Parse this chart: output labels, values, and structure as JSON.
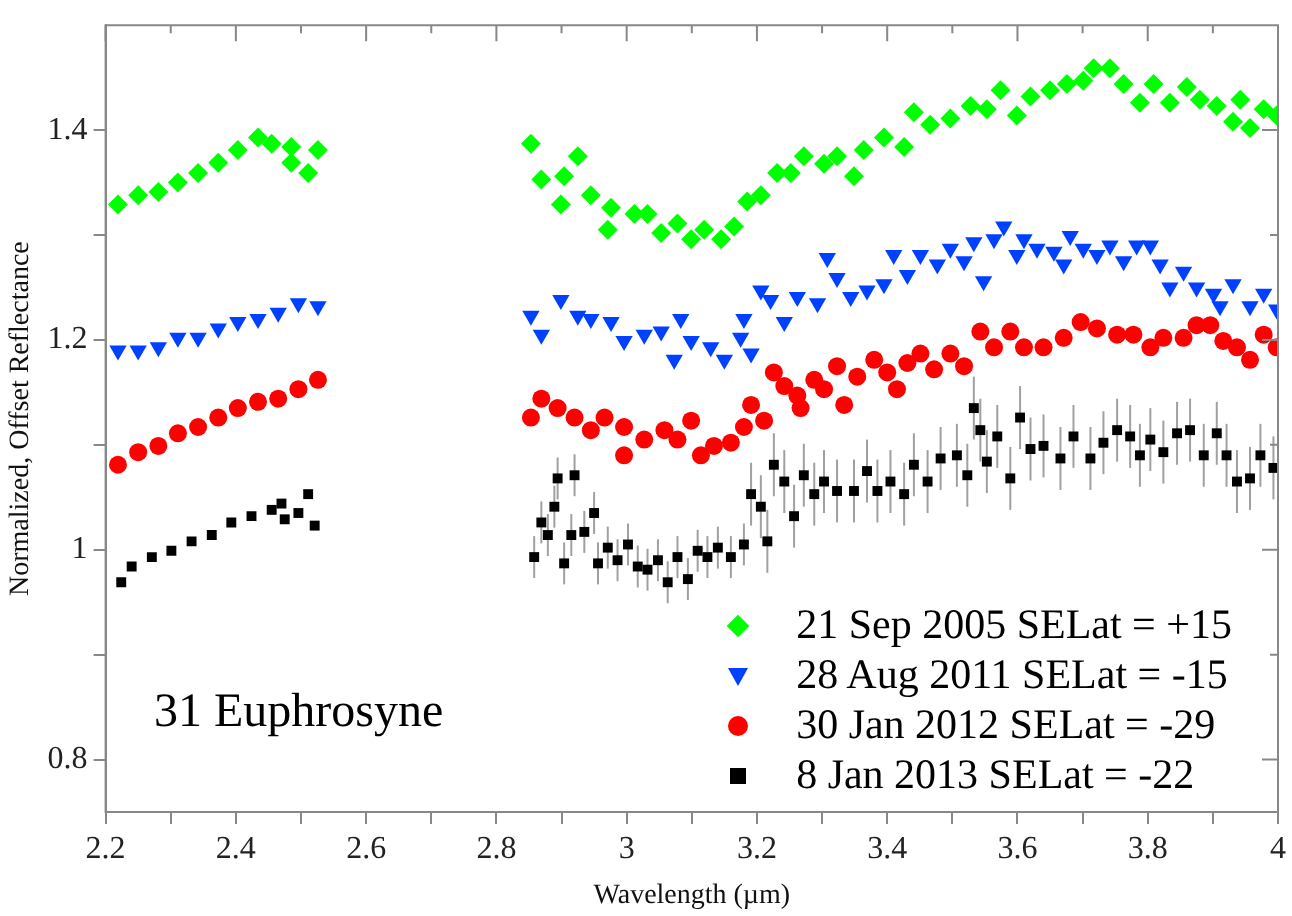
{
  "chart_data": {
    "type": "scatter",
    "xlabel": "Wavelength (µm)",
    "ylabel": "Normalized, Offset Reflectance",
    "xlim": [
      2.2,
      4
    ],
    "ylim": [
      0.75,
      1.5
    ],
    "xticks": [
      2.2,
      {
        "value": 2.3,
        "label": null
      },
      2.4,
      {
        "value": 2.5,
        "label": null
      },
      2.6,
      {
        "value": 2.7,
        "label": null
      },
      2.8,
      {
        "value": 2.9,
        "label": null
      },
      3,
      {
        "value": 3.1,
        "label": null
      },
      3.2,
      {
        "value": 3.3,
        "label": null
      },
      3.4,
      {
        "value": 3.5,
        "label": null
      },
      3.6,
      {
        "value": 3.7,
        "label": null
      },
      3.8,
      {
        "value": 3.9,
        "label": null
      },
      4
    ],
    "yticks": [
      0.8,
      {
        "value": 0.9,
        "label": null
      },
      1,
      {
        "value": 1.1,
        "label": null
      },
      1.2,
      {
        "value": 1.3,
        "label": null
      },
      1.4
    ],
    "grid": false,
    "legend": "bottom right",
    "annotations": [
      "31 Euphrosyne"
    ],
    "series": [
      {
        "name": "21 Sep 2005 SELat = +15",
        "color": "#00ff00",
        "marker": "diamond",
        "x": [
          2.219,
          2.25,
          2.281,
          2.311,
          2.342,
          2.373,
          2.403,
          2.434,
          2.455,
          2.485,
          2.485,
          2.511,
          2.526,
          2.853,
          2.869,
          2.904,
          2.925,
          2.899,
          2.945,
          2.976,
          2.971,
          3.012,
          3.032,
          3.053,
          3.078,
          3.099,
          3.119,
          3.145,
          3.165,
          3.185,
          3.206,
          3.231,
          3.252,
          3.272,
          3.303,
          3.323,
          3.349,
          3.364,
          3.395,
          3.426,
          3.441,
          3.466,
          3.497,
          3.528,
          3.553,
          3.574,
          3.599,
          3.62,
          3.65,
          3.676,
          3.701,
          3.717,
          3.742,
          3.763,
          3.788,
          3.809,
          3.834,
          3.86,
          3.88,
          3.906,
          3.931,
          3.942,
          3.957,
          3.978,
          3.998
        ],
        "values": [
          1.329,
          1.338,
          1.341,
          1.35,
          1.359,
          1.369,
          1.381,
          1.393,
          1.387,
          1.384,
          1.369,
          1.359,
          1.381,
          1.387,
          1.353,
          1.356,
          1.375,
          1.329,
          1.338,
          1.326,
          1.305,
          1.32,
          1.32,
          1.302,
          1.311,
          1.296,
          1.305,
          1.296,
          1.308,
          1.332,
          1.338,
          1.359,
          1.359,
          1.375,
          1.368,
          1.375,
          1.356,
          1.381,
          1.393,
          1.384,
          1.417,
          1.405,
          1.411,
          1.423,
          1.42,
          1.438,
          1.414,
          1.432,
          1.438,
          1.444,
          1.447,
          1.459,
          1.459,
          1.444,
          1.426,
          1.444,
          1.426,
          1.441,
          1.429,
          1.423,
          1.408,
          1.429,
          1.402,
          1.42,
          1.414
        ]
      },
      {
        "name": "28 Aug 2011 SELat = -15",
        "color": "#0040ff",
        "marker": "triangle",
        "x": [
          2.219,
          2.25,
          2.281,
          2.311,
          2.342,
          2.373,
          2.403,
          2.434,
          2.465,
          2.496,
          2.526,
          2.853,
          2.869,
          2.899,
          2.925,
          2.945,
          2.976,
          2.996,
          3.027,
          3.053,
          3.073,
          3.083,
          3.099,
          3.129,
          3.15,
          3.175,
          3.18,
          3.191,
          3.206,
          3.221,
          3.242,
          3.262,
          3.293,
          3.308,
          3.323,
          3.344,
          3.369,
          3.395,
          3.41,
          3.431,
          3.451,
          3.477,
          3.497,
          3.518,
          3.533,
          3.548,
          3.564,
          3.579,
          3.599,
          3.61,
          3.63,
          3.656,
          3.671,
          3.681,
          3.701,
          3.722,
          3.742,
          3.763,
          3.783,
          3.804,
          3.819,
          3.834,
          3.855,
          3.875,
          3.901,
          3.911,
          3.931,
          3.957,
          3.978,
          3.998
        ],
        "values": [
          1.19,
          1.19,
          1.193,
          1.202,
          1.202,
          1.211,
          1.217,
          1.22,
          1.226,
          1.235,
          1.232,
          1.223,
          1.205,
          1.238,
          1.223,
          1.22,
          1.217,
          1.199,
          1.205,
          1.208,
          1.181,
          1.22,
          1.199,
          1.193,
          1.181,
          1.202,
          1.22,
          1.187,
          1.247,
          1.238,
          1.217,
          1.241,
          1.235,
          1.278,
          1.259,
          1.241,
          1.247,
          1.253,
          1.281,
          1.262,
          1.281,
          1.272,
          1.287,
          1.275,
          1.293,
          1.256,
          1.296,
          1.308,
          1.281,
          1.296,
          1.287,
          1.284,
          1.272,
          1.299,
          1.287,
          1.281,
          1.29,
          1.275,
          1.29,
          1.29,
          1.272,
          1.25,
          1.265,
          1.25,
          1.244,
          1.232,
          1.253,
          1.232,
          1.244,
          1.229
        ]
      },
      {
        "name": "30 Jan 2012 SELat = -29",
        "color": "#ff0000",
        "marker": "circle",
        "x": [
          2.219,
          2.25,
          2.281,
          2.311,
          2.342,
          2.373,
          2.403,
          2.434,
          2.465,
          2.496,
          2.526,
          2.853,
          2.869,
          2.894,
          2.92,
          2.945,
          2.966,
          2.996,
          2.996,
          3.027,
          3.058,
          3.078,
          3.099,
          3.114,
          3.134,
          3.16,
          3.18,
          3.191,
          3.211,
          3.226,
          3.242,
          3.262,
          3.267,
          3.288,
          3.303,
          3.323,
          3.334,
          3.354,
          3.38,
          3.4,
          3.415,
          3.431,
          3.451,
          3.472,
          3.497,
          3.518,
          3.543,
          3.564,
          3.589,
          3.61,
          3.64,
          3.671,
          3.697,
          3.722,
          3.753,
          3.778,
          3.804,
          3.824,
          3.855,
          3.875,
          3.896,
          3.916,
          3.937,
          3.957,
          3.978,
          3.998
        ],
        "values": [
          1.081,
          1.093,
          1.099,
          1.111,
          1.117,
          1.126,
          1.135,
          1.141,
          1.144,
          1.153,
          1.162,
          1.126,
          1.144,
          1.135,
          1.126,
          1.114,
          1.126,
          1.117,
          1.09,
          1.105,
          1.114,
          1.105,
          1.123,
          1.09,
          1.099,
          1.102,
          1.117,
          1.138,
          1.123,
          1.169,
          1.156,
          1.147,
          1.135,
          1.162,
          1.153,
          1.175,
          1.138,
          1.165,
          1.181,
          1.169,
          1.153,
          1.178,
          1.187,
          1.172,
          1.187,
          1.175,
          1.208,
          1.193,
          1.208,
          1.193,
          1.193,
          1.202,
          1.217,
          1.211,
          1.205,
          1.205,
          1.193,
          1.202,
          1.202,
          1.214,
          1.214,
          1.199,
          1.193,
          1.181,
          1.205,
          1.193
        ]
      },
      {
        "name": "8 Jan 2013 SELat = -22",
        "color": "#000000",
        "marker": "square",
        "x": [
          2.224,
          2.24,
          2.271,
          2.301,
          2.332,
          2.363,
          2.393,
          2.424,
          2.455,
          2.47,
          2.475,
          2.496,
          2.511,
          2.521,
          2.858,
          2.869,
          2.879,
          2.889,
          2.894,
          2.904,
          2.915,
          2.92,
          2.935,
          2.95,
          2.956,
          2.971,
          2.986,
          3.002,
          3.017,
          3.032,
          3.048,
          3.063,
          3.078,
          3.094,
          3.109,
          3.124,
          3.14,
          3.16,
          3.18,
          3.191,
          3.206,
          3.216,
          3.226,
          3.242,
          3.257,
          3.272,
          3.288,
          3.303,
          3.323,
          3.349,
          3.369,
          3.385,
          3.405,
          3.426,
          3.441,
          3.462,
          3.482,
          3.507,
          3.523,
          3.533,
          3.543,
          3.553,
          3.569,
          3.589,
          3.604,
          3.62,
          3.64,
          3.666,
          3.686,
          3.712,
          3.732,
          3.753,
          3.773,
          3.788,
          3.804,
          3.824,
          3.845,
          3.865,
          3.886,
          3.906,
          3.921,
          3.937,
          3.957,
          3.973,
          3.993
        ],
        "values": [
          0.969,
          0.984,
          0.993,
          0.999,
          1.008,
          1.014,
          1.026,
          1.032,
          1.038,
          1.044,
          1.029,
          1.035,
          1.053,
          1.023,
          0.993,
          1.026,
          1.014,
          1.041,
          1.068,
          0.987,
          1.014,
          1.071,
          1.017,
          1.035,
          0.987,
          1.002,
          0.99,
          1.005,
          0.984,
          0.981,
          0.99,
          0.969,
          0.993,
          0.972,
          0.999,
          0.993,
          1.002,
          0.993,
          1.005,
          1.053,
          1.041,
          1.008,
          1.081,
          1.065,
          1.032,
          1.071,
          1.053,
          1.065,
          1.056,
          1.056,
          1.075,
          1.056,
          1.065,
          1.053,
          1.081,
          1.065,
          1.087,
          1.09,
          1.071,
          1.135,
          1.114,
          1.084,
          1.108,
          1.068,
          1.126,
          1.096,
          1.099,
          1.087,
          1.108,
          1.087,
          1.102,
          1.114,
          1.108,
          1.09,
          1.105,
          1.093,
          1.111,
          1.114,
          1.09,
          1.111,
          1.09,
          1.065,
          1.068,
          1.09,
          1.078
        ],
        "errors": [
          null,
          null,
          null,
          null,
          null,
          null,
          null,
          null,
          null,
          null,
          null,
          null,
          null,
          null,
          0.02,
          0.02,
          0.02,
          0.02,
          0.02,
          0.02,
          0.02,
          0.02,
          0.02,
          0.02,
          0.02,
          0.02,
          0.02,
          0.02,
          0.02,
          0.02,
          0.02,
          0.02,
          0.02,
          0.02,
          0.02,
          0.02,
          0.02,
          0.02,
          0.02,
          0.03,
          0.03,
          0.03,
          0.03,
          0.03,
          0.03,
          0.03,
          0.03,
          0.03,
          0.03,
          0.03,
          0.03,
          0.03,
          0.03,
          0.03,
          0.03,
          0.03,
          0.03,
          0.03,
          0.03,
          0.03,
          0.03,
          0.03,
          0.03,
          0.03,
          0.03,
          0.03,
          0.03,
          0.03,
          0.03,
          0.03,
          0.03,
          0.03,
          0.03,
          0.03,
          0.03,
          0.03,
          0.03,
          0.03,
          0.03,
          0.03,
          0.03,
          0.03,
          0.03,
          0.03,
          0.03
        ]
      }
    ]
  }
}
